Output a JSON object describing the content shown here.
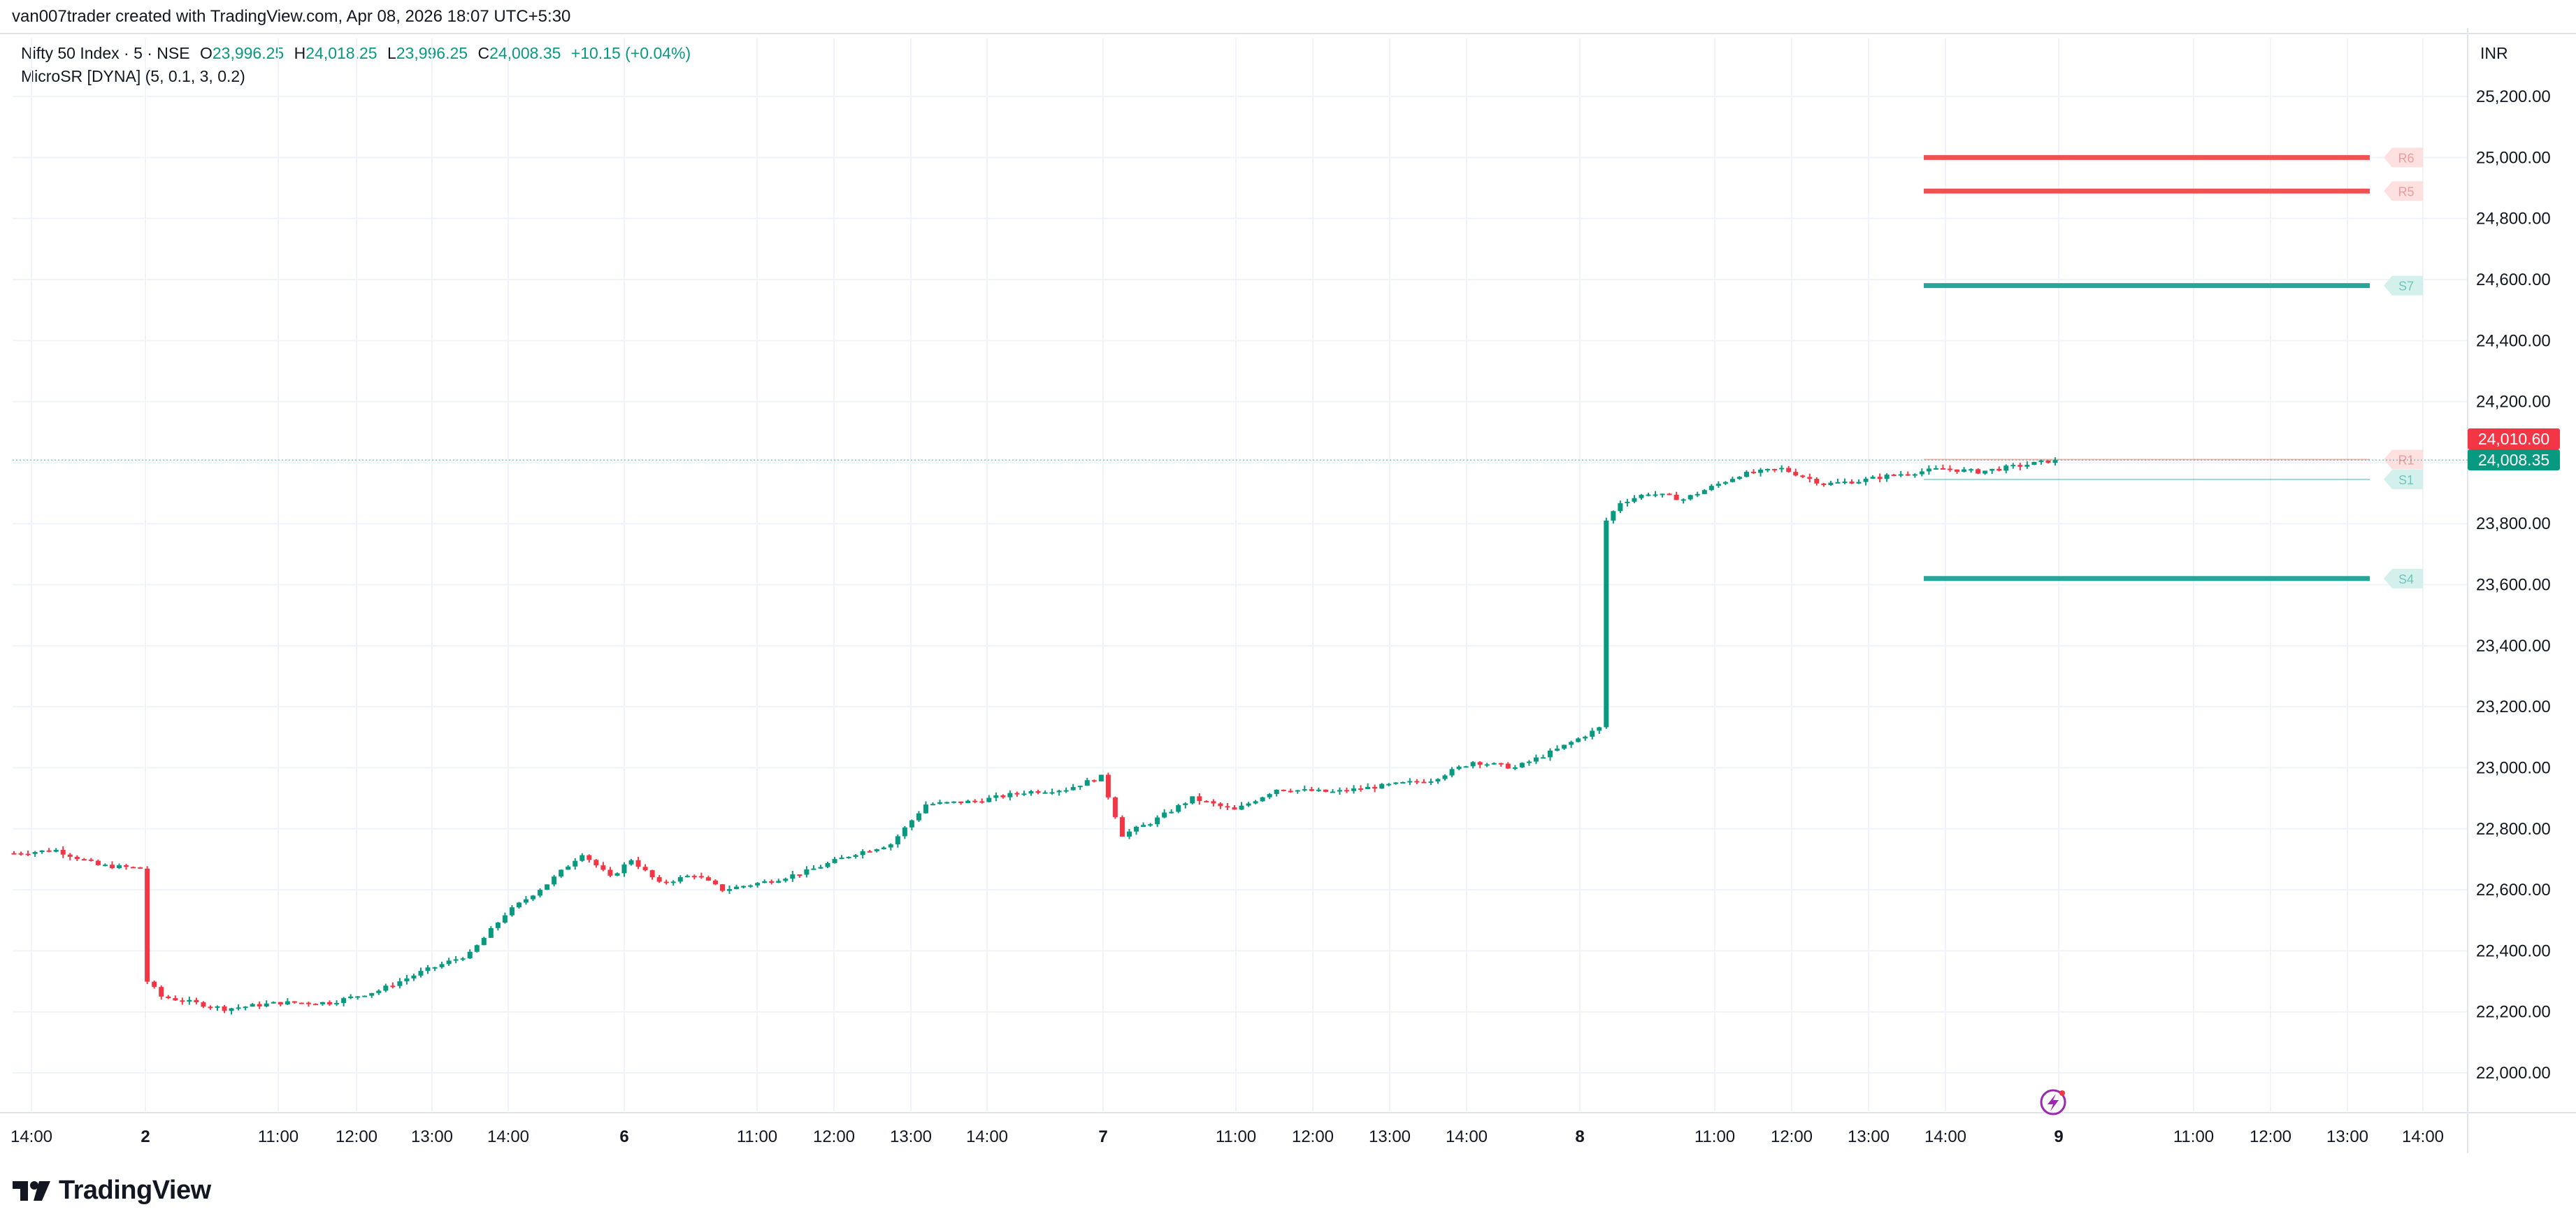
{
  "header": {
    "attribution": "van007trader created with TradingView.com, Apr 08, 2026 18:07 UTC+5:30"
  },
  "legend": {
    "symbol": "Nifty 50 Index · 5 · NSE",
    "o_label": "O",
    "o_value": "23,996.25",
    "h_label": "H",
    "h_value": "24,018.25",
    "l_label": "L",
    "l_value": "23,996.25",
    "c_label": "C",
    "c_value": "24,008.35",
    "change": "+10.15 (+0.04%)",
    "indicator": "MicroSR [DYNA] (5, 0.1, 3, 0.2)"
  },
  "currency": "INR",
  "brand": "TradingView",
  "colors": {
    "up": "#089981",
    "down": "#f23645",
    "resistance": "#ef5350",
    "support": "#26a69a",
    "grid": "#f0f3fa",
    "text": "#131722",
    "accent_icon": "#9c27b0"
  },
  "chart_data": {
    "type": "candlestick",
    "ylim": [
      21900,
      25300
    ],
    "y_ticks": [
      25200,
      25000,
      24800,
      24600,
      24400,
      24200,
      24000,
      23800,
      23600,
      23400,
      23200,
      23000,
      22800,
      22600,
      22400,
      22200,
      22000
    ],
    "y_tick_labels": [
      "25,200.00",
      "25,000.00",
      "24,800.00",
      "24,600.00",
      "24,400.00",
      "24,200.00",
      "24,000.00",
      "23,800.00",
      "23,600.00",
      "23,400.00",
      "23,200.00",
      "23,000.00",
      "22,800.00",
      "22,600.00",
      "22,400.00",
      "22,200.00",
      "22,000.00"
    ],
    "x_tick_labels": [
      "14:00",
      "2",
      "11:00",
      "12:00",
      "13:00",
      "14:00",
      "6",
      "11:00",
      "12:00",
      "13:00",
      "14:00",
      "7",
      "11:00",
      "12:00",
      "13:00",
      "14:00",
      "8",
      "11:00",
      "12:00",
      "13:00",
      "14:00",
      "9",
      "11:00",
      "12:00",
      "13:00",
      "14:00"
    ],
    "x_tick_bold": [
      false,
      true,
      false,
      false,
      false,
      false,
      true,
      false,
      false,
      false,
      false,
      true,
      false,
      false,
      false,
      false,
      true,
      false,
      false,
      false,
      false,
      true,
      false,
      false,
      false,
      false
    ],
    "price_path": [
      [
        0,
        22720
      ],
      [
        6,
        22730
      ],
      [
        12,
        22680
      ],
      [
        18,
        22670
      ],
      [
        19,
        22300
      ],
      [
        21,
        22250
      ],
      [
        30,
        22210
      ],
      [
        38,
        22230
      ],
      [
        45,
        22230
      ],
      [
        52,
        22270
      ],
      [
        58,
        22330
      ],
      [
        65,
        22390
      ],
      [
        70,
        22520
      ],
      [
        76,
        22620
      ],
      [
        81,
        22720
      ],
      [
        85,
        22640
      ],
      [
        88,
        22700
      ],
      [
        92,
        22620
      ],
      [
        97,
        22650
      ],
      [
        101,
        22600
      ],
      [
        108,
        22630
      ],
      [
        113,
        22660
      ],
      [
        120,
        22720
      ],
      [
        125,
        22750
      ],
      [
        130,
        22880
      ],
      [
        137,
        22890
      ],
      [
        144,
        22920
      ],
      [
        150,
        22930
      ],
      [
        155,
        22970
      ],
      [
        158,
        22780
      ],
      [
        162,
        22820
      ],
      [
        168,
        22900
      ],
      [
        174,
        22860
      ],
      [
        180,
        22930
      ],
      [
        188,
        22920
      ],
      [
        195,
        22940
      ],
      [
        202,
        22960
      ],
      [
        208,
        23020
      ],
      [
        214,
        23000
      ],
      [
        220,
        23060
      ],
      [
        226,
        23130
      ],
      [
        227,
        23810
      ],
      [
        229,
        23870
      ],
      [
        233,
        23900
      ],
      [
        238,
        23880
      ],
      [
        246,
        23960
      ],
      [
        252,
        23980
      ],
      [
        258,
        23930
      ],
      [
        263,
        23940
      ],
      [
        268,
        23960
      ],
      [
        275,
        23980
      ],
      [
        280,
        23970
      ],
      [
        286,
        23990
      ],
      [
        291,
        24008.35
      ]
    ],
    "candle_count": 292,
    "last_close": 24008.35,
    "price_tags": [
      {
        "value": 24010.6,
        "label": "24,010.60",
        "color": "#f23645"
      },
      {
        "value": 24008.35,
        "label": "24,008.35",
        "color": "#089981"
      }
    ],
    "sr_levels": [
      {
        "name": "R6",
        "value": 25000,
        "kind": "resistance",
        "weight": "thick"
      },
      {
        "name": "R5",
        "value": 24890,
        "kind": "resistance",
        "weight": "thick"
      },
      {
        "name": "S7",
        "value": 24580,
        "kind": "support",
        "weight": "thick"
      },
      {
        "name": "R1",
        "value": 24010,
        "kind": "resistance",
        "weight": "thin"
      },
      {
        "name": "S1",
        "value": 23945,
        "kind": "support",
        "weight": "thin"
      },
      {
        "name": "S4",
        "value": 23620,
        "kind": "support",
        "weight": "thick"
      }
    ]
  }
}
